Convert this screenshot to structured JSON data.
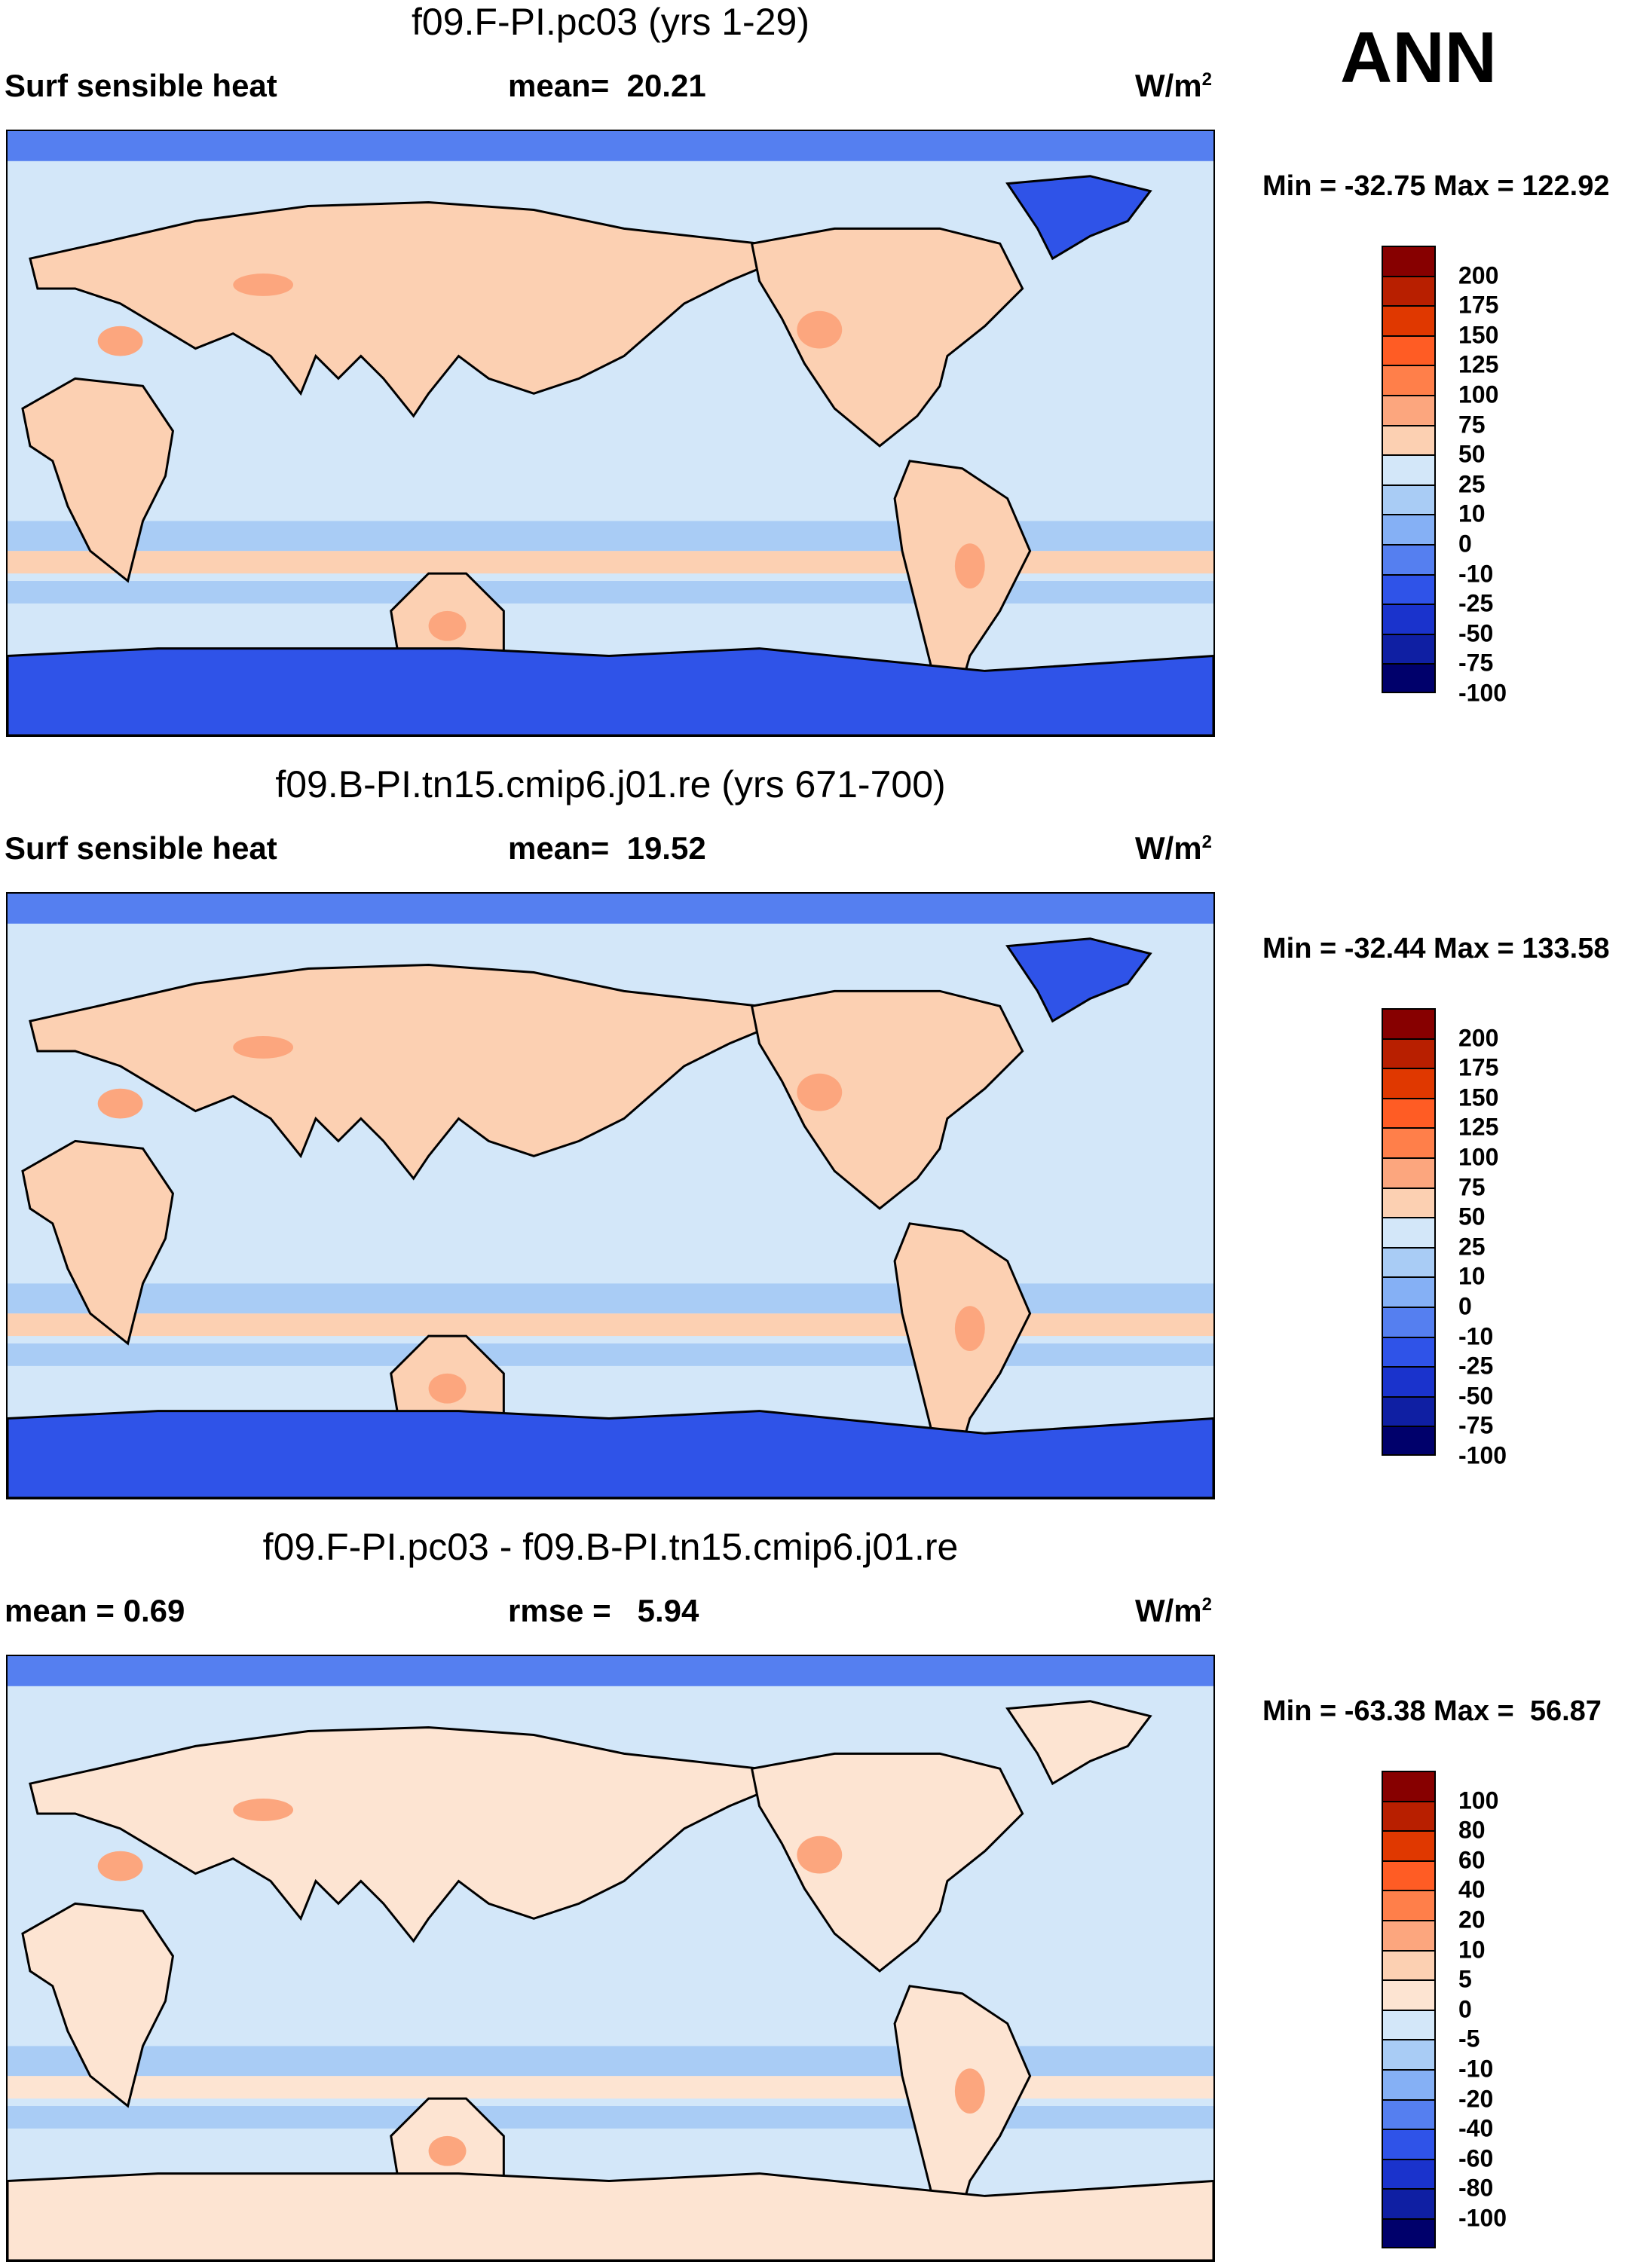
{
  "season": "ANN",
  "panels": [
    {
      "title": "f09.F-PI.pc03 (yrs 1-29)",
      "left_label": "Surf sensible heat",
      "center_label": "mean=  20.21",
      "units": "W/m",
      "units_sup": "2",
      "minmax": "Min = -32.75 Max = 122.92",
      "colorbar": {
        "colors": [
          "#870000",
          "#b81f00",
          "#e03800",
          "#ff5c24",
          "#ff7f4a",
          "#fca67e",
          "#fcd0b2",
          "#d3e7f9",
          "#a9ccf5",
          "#85b0f5",
          "#557ff0",
          "#2f53e8",
          "#1a33cc",
          "#0f1fa3",
          "#00006b"
        ],
        "labels": [
          "200",
          "175",
          "150",
          "125",
          "100",
          "75",
          "50",
          "25",
          "10",
          "0",
          "-10",
          "-25",
          "-50",
          "-75",
          "-100"
        ]
      },
      "map_colors": {
        "ocean": "#d3e7f9",
        "land_warm": "#fcd0b2",
        "land_hot": "#fca67e",
        "cool": "#a9ccf5",
        "cold": "#557ff0",
        "cap": "#2f53e8"
      }
    },
    {
      "title": "f09.B-PI.tn15.cmip6.j01.re (yrs 671-700)",
      "left_label": "Surf sensible heat",
      "center_label": "mean=  19.52",
      "units": "W/m",
      "units_sup": "2",
      "minmax": "Min = -32.44 Max = 133.58",
      "colorbar": {
        "colors": [
          "#870000",
          "#b81f00",
          "#e03800",
          "#ff5c24",
          "#ff7f4a",
          "#fca67e",
          "#fcd0b2",
          "#d3e7f9",
          "#a9ccf5",
          "#85b0f5",
          "#557ff0",
          "#2f53e8",
          "#1a33cc",
          "#0f1fa3",
          "#00006b"
        ],
        "labels": [
          "200",
          "175",
          "150",
          "125",
          "100",
          "75",
          "50",
          "25",
          "10",
          "0",
          "-10",
          "-25",
          "-50",
          "-75",
          "-100"
        ]
      },
      "map_colors": {
        "ocean": "#d3e7f9",
        "land_warm": "#fcd0b2",
        "land_hot": "#fca67e",
        "cool": "#a9ccf5",
        "cold": "#557ff0",
        "cap": "#2f53e8"
      }
    },
    {
      "title": "f09.F-PI.pc03 - f09.B-PI.tn15.cmip6.j01.re",
      "left_label": "mean =   0.69",
      "center_label": "rmse =   5.94",
      "units": "W/m",
      "units_sup": "2",
      "minmax": "Min = -63.38 Max =  56.87",
      "colorbar": {
        "colors": [
          "#870000",
          "#b81f00",
          "#e03800",
          "#ff5c24",
          "#ff7f4a",
          "#fca67e",
          "#fcd0b2",
          "#fde4d2",
          "#d3e7f9",
          "#a9ccf5",
          "#85b0f5",
          "#557ff0",
          "#2f53e8",
          "#1a33cc",
          "#0f1fa3",
          "#00006b"
        ],
        "labels": [
          "100",
          "80",
          "60",
          "40",
          "20",
          "10",
          "5",
          "0",
          "-5",
          "-10",
          "-20",
          "-40",
          "-60",
          "-80",
          "-100"
        ]
      },
      "map_colors": {
        "ocean": "#d3e7f9",
        "land_warm": "#fde4d2",
        "land_hot": "#fca67e",
        "cool": "#a9ccf5",
        "cold": "#557ff0",
        "cap": "#fde4d2"
      }
    }
  ]
}
